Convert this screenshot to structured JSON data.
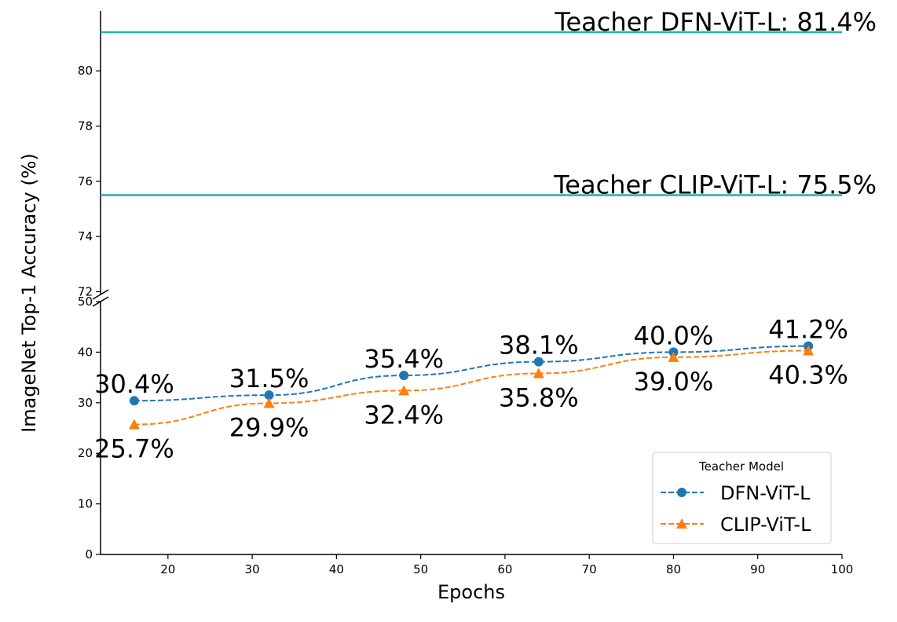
{
  "chart_data": {
    "type": "line",
    "xlabel": "Epochs",
    "ylabel": "ImageNet Top-1 Accuracy (%)",
    "xlim": [
      12,
      100
    ],
    "x_ticks": [
      20,
      30,
      40,
      50,
      60,
      70,
      80,
      90,
      100
    ],
    "broken_y_axis": true,
    "upper_ylim": [
      71.9,
      81.6
    ],
    "upper_y_ticks": [
      72,
      74,
      76,
      78,
      80
    ],
    "lower_ylim": [
      0,
      50
    ],
    "lower_y_ticks": [
      0,
      10,
      20,
      30,
      40,
      50
    ],
    "x": [
      16,
      32,
      48,
      64,
      80,
      96
    ],
    "series": [
      {
        "name": "DFN-ViT-L",
        "values": [
          30.4,
          31.5,
          35.4,
          38.1,
          40.0,
          41.2
        ],
        "labels": [
          "30.4%",
          "31.5%",
          "35.4%",
          "38.1%",
          "40.0%",
          "41.2%"
        ],
        "color": "#1f77b4",
        "marker": "circle",
        "linestyle": "dashed",
        "label_position": "above"
      },
      {
        "name": "CLIP-ViT-L",
        "values": [
          25.7,
          29.9,
          32.4,
          35.8,
          39.0,
          40.3
        ],
        "labels": [
          "25.7%",
          "29.9%",
          "32.4%",
          "35.8%",
          "39.0%",
          "40.3%"
        ],
        "color": "#ff7f0e",
        "marker": "triangle",
        "linestyle": "dashed",
        "label_position": "below"
      }
    ],
    "reference_lines": [
      {
        "value": 81.4,
        "label": "Teacher DFN-ViT-L: 81.4%",
        "color": "#20b2aa"
      },
      {
        "value": 75.5,
        "label": "Teacher CLIP-ViT-L: 75.5%",
        "color": "#20b2aa"
      }
    ],
    "legend": {
      "title": "Teacher Model",
      "placement": "lower-right",
      "entries": [
        "DFN-ViT-L",
        "CLIP-ViT-L"
      ]
    },
    "grid": false
  }
}
